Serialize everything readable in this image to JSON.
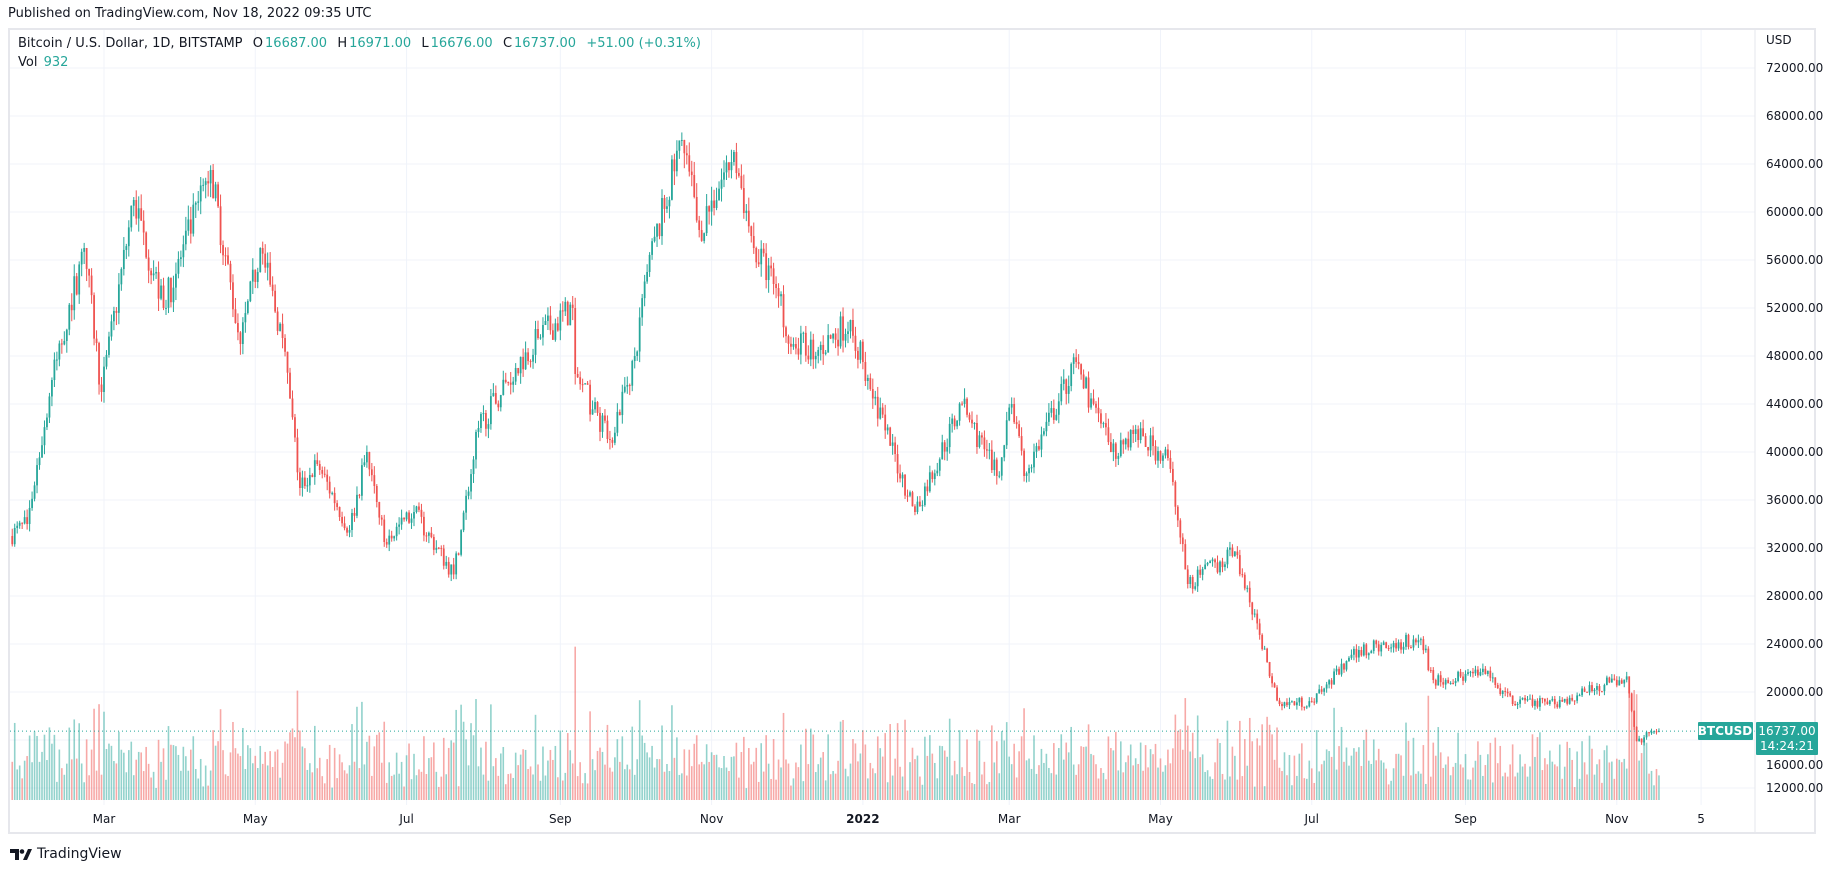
{
  "published": "Published on TradingView.com, Nov 18, 2022 09:35 UTC",
  "legend": {
    "symbol": "Bitcoin / U.S. Dollar, 1D, BITSTAMP",
    "o_label": "O",
    "o": "16687.00",
    "h_label": "H",
    "h": "16971.00",
    "l_label": "L",
    "l": "16676.00",
    "c_label": "C",
    "c": "16737.00",
    "change": "+51.00 (+0.31%)",
    "vol_label": "Vol",
    "vol": "932"
  },
  "currency": "USD",
  "price_tag": {
    "symbol": "BTCUSD",
    "price": "16737.00",
    "countdown": "14:24:21"
  },
  "logo": "TradingView",
  "colors": {
    "up": "#26a69a",
    "down": "#ef5350"
  },
  "chart_data": {
    "type": "candlestick",
    "title": "Bitcoin / U.S. Dollar, 1D, BITSTAMP",
    "ylabel": "USD",
    "ylim": [
      10000,
      74000
    ],
    "y_ticks": [
      "12000.00",
      "16000.00",
      "20000.00",
      "24000.00",
      "28000.00",
      "32000.00",
      "36000.00",
      "40000.00",
      "44000.00",
      "48000.00",
      "52000.00",
      "56000.00",
      "60000.00",
      "64000.00",
      "68000.00",
      "72000.00"
    ],
    "x_ticks": [
      {
        "label": "Mar",
        "date": "2021-03-01"
      },
      {
        "label": "May",
        "date": "2021-05-01"
      },
      {
        "label": "Jul",
        "date": "2021-07-01"
      },
      {
        "label": "Sep",
        "date": "2021-09-01"
      },
      {
        "label": "Nov",
        "date": "2021-11-01"
      },
      {
        "label": "2022",
        "date": "2022-01-01"
      },
      {
        "label": "Mar",
        "date": "2022-03-01"
      },
      {
        "label": "May",
        "date": "2022-05-01"
      },
      {
        "label": "Jul",
        "date": "2022-07-01"
      },
      {
        "label": "Sep",
        "date": "2022-09-01"
      },
      {
        "label": "Nov",
        "date": "2022-11-01"
      },
      {
        "label": "5",
        "date": "2022-12-05"
      }
    ],
    "close_anchors": [
      [
        "2021-01-22",
        33000
      ],
      [
        "2021-01-29",
        34000
      ],
      [
        "2021-02-08",
        46000
      ],
      [
        "2021-02-21",
        57000
      ],
      [
        "2021-02-28",
        45000
      ],
      [
        "2021-03-13",
        61000
      ],
      [
        "2021-03-25",
        52000
      ],
      [
        "2021-04-13",
        63500
      ],
      [
        "2021-04-25",
        49000
      ],
      [
        "2021-05-03",
        57000
      ],
      [
        "2021-05-12",
        49500
      ],
      [
        "2021-05-19",
        37000
      ],
      [
        "2021-05-26",
        39000
      ],
      [
        "2021-06-08",
        33500
      ],
      [
        "2021-06-15",
        40000
      ],
      [
        "2021-06-22",
        32500
      ],
      [
        "2021-07-04",
        35000
      ],
      [
        "2021-07-20",
        29800
      ],
      [
        "2021-07-30",
        42000
      ],
      [
        "2021-08-14",
        47000
      ],
      [
        "2021-08-23",
        49500
      ],
      [
        "2021-09-06",
        52000
      ],
      [
        "2021-09-07",
        46500
      ],
      [
        "2021-09-21",
        41000
      ],
      [
        "2021-10-01",
        48000
      ],
      [
        "2021-10-06",
        55000
      ],
      [
        "2021-10-20",
        66000
      ],
      [
        "2021-10-27",
        58500
      ],
      [
        "2021-11-10",
        65000
      ],
      [
        "2021-11-18",
        57000
      ],
      [
        "2021-11-26",
        54000
      ],
      [
        "2021-12-04",
        49000
      ],
      [
        "2021-12-14",
        48500
      ],
      [
        "2021-12-27",
        51000
      ],
      [
        "2022-01-01",
        47500
      ],
      [
        "2022-01-10",
        41800
      ],
      [
        "2022-01-22",
        35000
      ],
      [
        "2022-02-10",
        44000
      ],
      [
        "2022-02-24",
        38000
      ],
      [
        "2022-03-02",
        44000
      ],
      [
        "2022-03-07",
        38000
      ],
      [
        "2022-03-28",
        47500
      ],
      [
        "2022-04-11",
        40000
      ],
      [
        "2022-04-20",
        41500
      ],
      [
        "2022-05-04",
        39500
      ],
      [
        "2022-05-12",
        29000
      ],
      [
        "2022-05-31",
        31700
      ],
      [
        "2022-06-13",
        22500
      ],
      [
        "2022-06-18",
        19000
      ],
      [
        "2022-07-01",
        19200
      ],
      [
        "2022-07-20",
        23500
      ],
      [
        "2022-08-14",
        24400
      ],
      [
        "2022-08-19",
        21000
      ],
      [
        "2022-09-09",
        21500
      ],
      [
        "2022-09-20",
        19000
      ],
      [
        "2022-10-10",
        19200
      ],
      [
        "2022-10-29",
        20800
      ],
      [
        "2022-11-05",
        21300
      ],
      [
        "2022-11-09",
        15900
      ],
      [
        "2022-11-17",
        16687
      ],
      [
        "2022-11-18",
        16737
      ]
    ],
    "last_candle": {
      "date": "2022-11-18",
      "open": 16687,
      "high": 16971,
      "low": 16676,
      "close": 16737,
      "volume": 932
    }
  }
}
